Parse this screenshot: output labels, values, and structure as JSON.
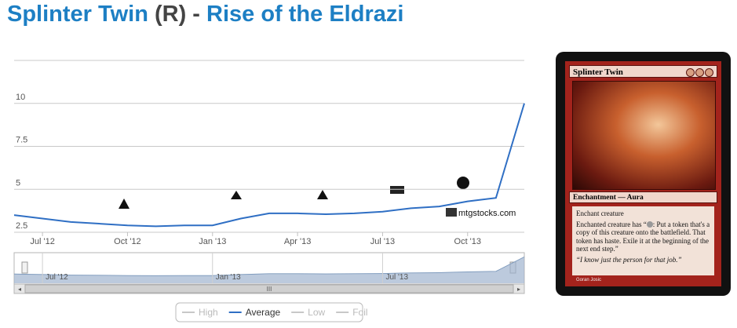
{
  "header": {
    "card_name": "Splinter Twin",
    "rarity": "(R)",
    "separator": "-",
    "set_name": "Rise of the Eldrazi"
  },
  "chart_data": {
    "type": "line",
    "x": [
      "2012-06",
      "2012-07",
      "2012-08",
      "2012-09",
      "2012-10",
      "2012-11",
      "2012-12",
      "2013-01",
      "2013-02",
      "2013-03",
      "2013-04",
      "2013-05",
      "2013-06",
      "2013-07",
      "2013-08",
      "2013-09",
      "2013-10",
      "2013-11",
      "2013-12"
    ],
    "series": [
      {
        "name": "High",
        "visible": false
      },
      {
        "name": "Average",
        "color": "#2f6fc4",
        "visible": true,
        "values": [
          3.5,
          3.3,
          3.1,
          3.0,
          2.9,
          2.85,
          2.9,
          2.9,
          3.3,
          3.6,
          3.6,
          3.55,
          3.6,
          3.7,
          3.9,
          4.0,
          4.3,
          4.5,
          10.0
        ]
      },
      {
        "name": "Low",
        "visible": false
      },
      {
        "name": "Foil",
        "visible": false
      }
    ],
    "xlim": [
      "2012-06",
      "2013-12"
    ],
    "xticks": [
      {
        "value": "2012-07",
        "label": "Jul '12"
      },
      {
        "value": "2012-10",
        "label": "Oct '12"
      },
      {
        "value": "2013-01",
        "label": "Jan '13"
      },
      {
        "value": "2013-04",
        "label": "Apr '13"
      },
      {
        "value": "2013-07",
        "label": "Jul '13"
      },
      {
        "value": "2013-10",
        "label": "Oct '13"
      }
    ],
    "navigator_xticks": [
      {
        "value": "2012-07",
        "label": "Jul '12"
      },
      {
        "value": "2013-01",
        "label": "Jan '13"
      },
      {
        "value": "2013-07",
        "label": "Jul '13"
      }
    ],
    "ylim": [
      2.5,
      12.5
    ],
    "yticks": [
      2.5,
      5,
      7.5,
      10
    ],
    "grid": true,
    "watermark": "mtgstocks.com"
  },
  "card": {
    "name": "Splinter Twin",
    "type_line": "Enchantment — Aura",
    "rules_1": "Enchant creature",
    "rules_2a": "Enchanted creature has “",
    "rules_2b": ": Put a token that's a copy of this creature onto the battlefield. That token has haste. Exile it at the beginning of the next end step.”",
    "flavor": "“I know just the person for that job.”",
    "artist": "Goran Josic"
  }
}
